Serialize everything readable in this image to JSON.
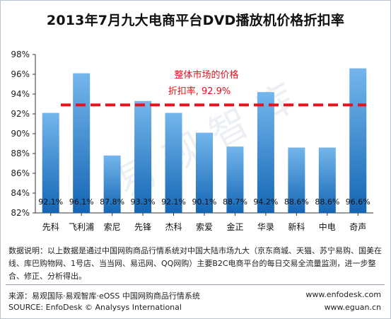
{
  "chart_data": {
    "type": "bar",
    "title": "2013年7月九大电商平台DVD播放机价格折扣率",
    "categories": [
      "先科",
      "飞利浦",
      "索尼",
      "先锋",
      "杰科",
      "索爱",
      "金正",
      "华录",
      "新科",
      "中电",
      "奇声"
    ],
    "values": [
      92.1,
      96.1,
      87.8,
      93.3,
      92.1,
      90.1,
      88.7,
      94.2,
      88.6,
      88.6,
      96.6
    ],
    "value_labels": [
      "92.1%",
      "96.1%",
      "87.8%",
      "93.3%",
      "92.1%",
      "90.1%",
      "88.7%",
      "94.2%",
      "88.6%",
      "88.6%",
      "96.6%"
    ],
    "ylim": [
      82,
      98
    ],
    "yticks": [
      82,
      84,
      86,
      88,
      90,
      92,
      94,
      96,
      98
    ],
    "ytick_labels": [
      "82%",
      "84%",
      "86%",
      "88%",
      "90%",
      "92%",
      "94%",
      "96%",
      "98%"
    ],
    "reference_value": 92.9,
    "annotation": {
      "line1": "整体市场的价格",
      "line2": "折扣率, 92.9%"
    },
    "colors": {
      "bar_top": "#74b6ec",
      "bar_bottom": "#1466b4",
      "reference_line": "#e8101c",
      "annotation_text": "#e8101c"
    }
  },
  "watermark": "易观智库",
  "footer": {
    "description": "数据说明：以上数据是通过中国网购商品行情系统对中国大陆市场九大（京东商城、天猫、苏宁易购、国美在线、库巴购物网、1号店、当当网、易迅网、QQ网购）主要B2C电商平台的每日交易全流量监测，进一步整合、修正、分析得出。",
    "source_cn": "来源：易观国际·易观智库·eOSS 中国网购商品行情系统",
    "source_en": "SOURCE: EnfoDesk © Analysys International",
    "url1": "www.enfodesk.com",
    "url2": "www.eguan.cn"
  }
}
